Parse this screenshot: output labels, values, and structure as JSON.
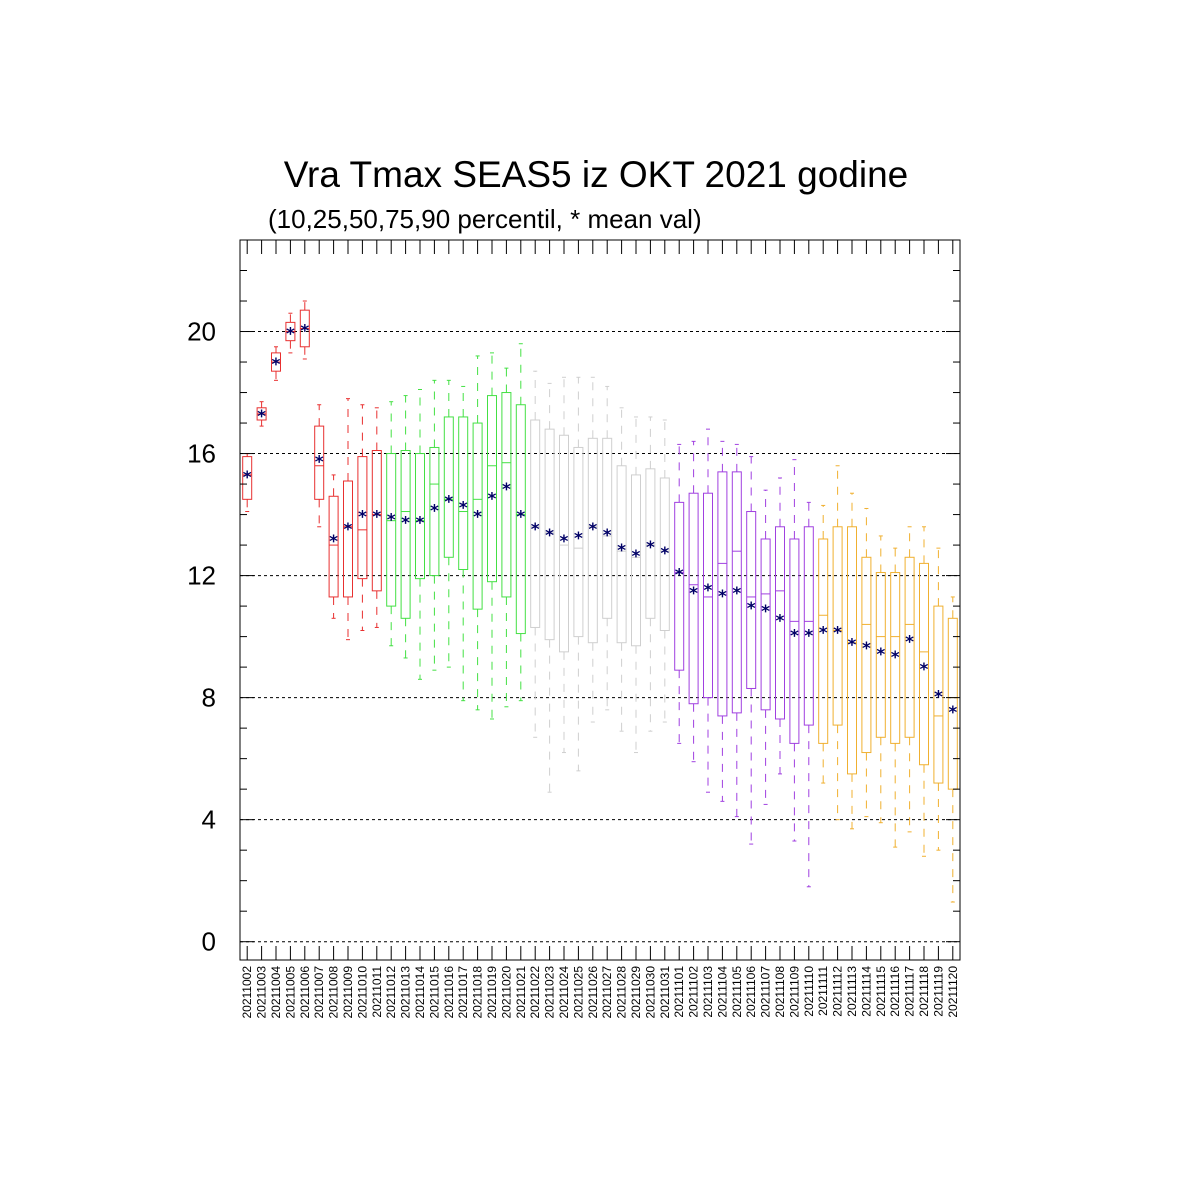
{
  "chart_data": {
    "type": "box",
    "title": "Vra Tmax SEAS5 iz OKT 2021 godine",
    "subtitle": "(10,25,50,75,90 percentil, * mean val)",
    "ylim": [
      -0.6,
      23.0
    ],
    "yticks": [
      0,
      4,
      8,
      12,
      16,
      20
    ],
    "ytick_labels": [
      "0",
      "4",
      "8",
      "12",
      "16",
      "20"
    ],
    "grid": "horizontal dashed at labeled y ticks",
    "colors": {
      "early": "#e83030",
      "mid_oct": "#44e044",
      "late_oct": "#cfcfcf",
      "nov": "#a040e0",
      "late_nov": "#f0b030",
      "mean_marker": "#000066"
    },
    "categories": [
      "20211002",
      "20211003",
      "20211004",
      "20211005",
      "20211006",
      "20211007",
      "20211008",
      "20211009",
      "20211010",
      "20211011",
      "20211012",
      "20211013",
      "20211014",
      "20211015",
      "20211016",
      "20211017",
      "20211018",
      "20211019",
      "20211020",
      "20211021",
      "20211022",
      "20211023",
      "20211024",
      "20211025",
      "20211026",
      "20211027",
      "20211028",
      "20211029",
      "20211030",
      "20211031",
      "20211101",
      "20211102",
      "20211103",
      "20211104",
      "20211105",
      "20211106",
      "20211107",
      "20211108",
      "20211109",
      "20211110",
      "20211111",
      "20211112",
      "20211113",
      "20211114",
      "20211115",
      "20211116",
      "20211117",
      "20211118",
      "20211119",
      "20211120"
    ],
    "group": [
      "early",
      "early",
      "early",
      "early",
      "early",
      "early",
      "early",
      "early",
      "early",
      "early",
      "mid_oct",
      "mid_oct",
      "mid_oct",
      "mid_oct",
      "mid_oct",
      "mid_oct",
      "mid_oct",
      "mid_oct",
      "mid_oct",
      "mid_oct",
      "late_oct",
      "late_oct",
      "late_oct",
      "late_oct",
      "late_oct",
      "late_oct",
      "late_oct",
      "late_oct",
      "late_oct",
      "late_oct",
      "nov",
      "nov",
      "nov",
      "nov",
      "nov",
      "nov",
      "nov",
      "nov",
      "nov",
      "nov",
      "late_nov",
      "late_nov",
      "late_nov",
      "late_nov",
      "late_nov",
      "late_nov",
      "late_nov",
      "late_nov",
      "late_nov",
      "late_nov"
    ],
    "p10": [
      14.1,
      16.9,
      18.4,
      19.3,
      19.1,
      13.6,
      10.6,
      9.9,
      10.2,
      10.3,
      9.7,
      9.3,
      8.6,
      8.9,
      9.0,
      7.9,
      7.6,
      7.3,
      7.7,
      7.9,
      6.7,
      4.9,
      6.2,
      5.6,
      7.2,
      7.6,
      6.9,
      6.2,
      6.9,
      7.2,
      6.5,
      5.9,
      4.9,
      4.6,
      4.1,
      3.2,
      4.5,
      5.5,
      3.3,
      1.8,
      5.2,
      4.0,
      3.7,
      4.1,
      3.9,
      3.1,
      3.6,
      2.8,
      3.0,
      1.3
    ],
    "p25": [
      14.5,
      17.1,
      18.7,
      19.7,
      19.5,
      14.5,
      11.3,
      11.3,
      11.9,
      11.5,
      11.0,
      10.6,
      11.9,
      12.0,
      12.6,
      12.2,
      10.9,
      11.8,
      11.3,
      10.1,
      10.3,
      9.9,
      9.5,
      10.0,
      9.8,
      10.6,
      9.8,
      9.7,
      10.6,
      10.2,
      8.9,
      7.8,
      8.0,
      7.4,
      7.5,
      8.3,
      7.6,
      7.3,
      6.5,
      7.1,
      6.5,
      7.1,
      5.5,
      6.2,
      6.7,
      6.5,
      6.7,
      5.8,
      5.2,
      5.0
    ],
    "p50": [
      15.3,
      17.3,
      19.0,
      20.0,
      20.1,
      15.6,
      13.0,
      13.6,
      13.5,
      14.0,
      13.8,
      14.1,
      13.8,
      15.0,
      14.5,
      14.1,
      14.5,
      15.6,
      15.7,
      14.0,
      13.6,
      13.4,
      13.0,
      12.9,
      13.6,
      13.3,
      12.8,
      12.6,
      13.0,
      12.8,
      12.1,
      11.7,
      11.3,
      12.4,
      12.8,
      11.3,
      11.4,
      11.5,
      10.5,
      10.5,
      10.7,
      10.2,
      9.8,
      10.4,
      10.0,
      10.0,
      10.4,
      9.5,
      7.4,
      8.0
    ],
    "p75": [
      15.9,
      17.5,
      19.3,
      20.3,
      20.7,
      16.9,
      14.6,
      15.1,
      15.9,
      16.1,
      16.0,
      16.1,
      16.0,
      16.2,
      17.2,
      17.2,
      17.0,
      17.9,
      18.0,
      17.6,
      17.1,
      16.8,
      16.6,
      16.2,
      16.5,
      16.5,
      15.6,
      15.3,
      15.5,
      15.2,
      14.4,
      14.7,
      14.7,
      15.4,
      15.4,
      14.1,
      13.2,
      13.6,
      13.2,
      13.6,
      13.2,
      13.6,
      13.6,
      12.6,
      12.1,
      12.1,
      12.6,
      12.4,
      11.0,
      10.6
    ],
    "p90": [
      16.0,
      17.7,
      19.5,
      20.6,
      21.0,
      17.6,
      15.3,
      17.8,
      17.6,
      17.5,
      17.7,
      17.9,
      18.1,
      18.4,
      18.4,
      18.2,
      19.2,
      19.3,
      18.8,
      19.6,
      18.7,
      18.3,
      18.5,
      18.5,
      18.5,
      18.2,
      17.5,
      17.2,
      17.2,
      17.1,
      16.3,
      16.4,
      16.8,
      16.4,
      16.3,
      15.9,
      14.8,
      15.2,
      15.8,
      14.4,
      14.3,
      15.6,
      14.7,
      14.2,
      13.3,
      12.9,
      13.6,
      13.6,
      12.9,
      11.3
    ],
    "mean": [
      15.3,
      17.3,
      19.0,
      20.0,
      20.1,
      15.8,
      13.2,
      13.6,
      14.0,
      14.0,
      13.9,
      13.8,
      13.8,
      14.2,
      14.5,
      14.3,
      14.0,
      14.6,
      14.9,
      14.0,
      13.6,
      13.4,
      13.2,
      13.3,
      13.6,
      13.4,
      12.9,
      12.7,
      13.0,
      12.8,
      12.1,
      11.5,
      11.6,
      11.4,
      11.5,
      11.0,
      10.9,
      10.6,
      10.1,
      10.1,
      10.2,
      10.2,
      9.8,
      9.7,
      9.5,
      9.4,
      9.9,
      9.0,
      8.1,
      7.6
    ]
  }
}
